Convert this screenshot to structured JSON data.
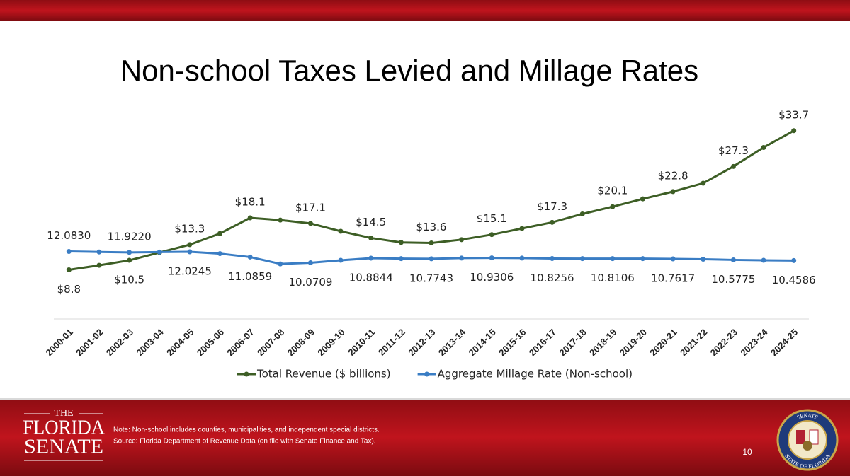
{
  "chart_data": {
    "type": "line",
    "title": "Non-school Taxes Levied and Millage Rates",
    "categories": [
      "2000-01",
      "2001-02",
      "2002-03",
      "2003-04",
      "2004-05",
      "2005-06",
      "2006-07",
      "2007-08",
      "2008-09",
      "2009-10",
      "2010-11",
      "2011-12",
      "2012-13",
      "2013-14",
      "2014-15",
      "2015-16",
      "2016-17",
      "2017-18",
      "2018-19",
      "2019-20",
      "2020-21",
      "2021-22",
      "2022-23",
      "2023-24",
      "2024-25"
    ],
    "ylim": [
      0,
      40
    ],
    "legend": "bottom",
    "series": [
      {
        "name": "Total Revenue ($ billions)",
        "color": "#3d5e25",
        "values": [
          8.8,
          9.6,
          10.5,
          11.9,
          13.3,
          15.3,
          18.1,
          17.7,
          17.1,
          15.7,
          14.5,
          13.7,
          13.6,
          14.2,
          15.1,
          16.2,
          17.3,
          18.8,
          20.1,
          21.5,
          22.8,
          24.3,
          27.3,
          30.7,
          33.7
        ],
        "value_labels": [
          "$8.8",
          null,
          "$10.5",
          null,
          "$13.3",
          null,
          "$18.1",
          null,
          "$17.1",
          null,
          "$14.5",
          null,
          "$13.6",
          null,
          "$15.1",
          null,
          "$17.3",
          null,
          "$20.1",
          null,
          "$22.8",
          null,
          "$27.3",
          null,
          "$33.7"
        ]
      },
      {
        "name": "Aggregate Millage Rate (Non-school)",
        "color": "#3a7dc4",
        "values": [
          12.083,
          12.0,
          11.922,
          11.98,
          12.0245,
          11.7,
          11.0859,
          9.86,
          10.0709,
          10.5,
          10.8844,
          10.8,
          10.7743,
          10.9,
          10.9306,
          10.9,
          10.8256,
          10.8,
          10.8106,
          10.8,
          10.7617,
          10.7,
          10.5775,
          10.5,
          10.4586
        ],
        "value_labels": [
          "12.0830",
          null,
          "11.9220",
          null,
          "12.0245",
          null,
          "11.0859",
          null,
          "10.0709",
          null,
          "10.8844",
          null,
          "10.7743",
          null,
          "10.9306",
          null,
          "10.8256",
          null,
          "10.8106",
          null,
          "10.7617",
          null,
          "10.5775",
          null,
          "10.4586"
        ]
      }
    ]
  },
  "footer": {
    "note": "Note: Non-school includes counties, municipalities, and independent special districts.",
    "source": "Source: Florida Department of Revenue Data (on file with Senate Finance and Tax).",
    "page_number": "10",
    "logo": [
      "THE",
      "FLORIDA",
      "SENATE"
    ],
    "seal": [
      "SENATE",
      "STATE OF FLORIDA"
    ]
  }
}
